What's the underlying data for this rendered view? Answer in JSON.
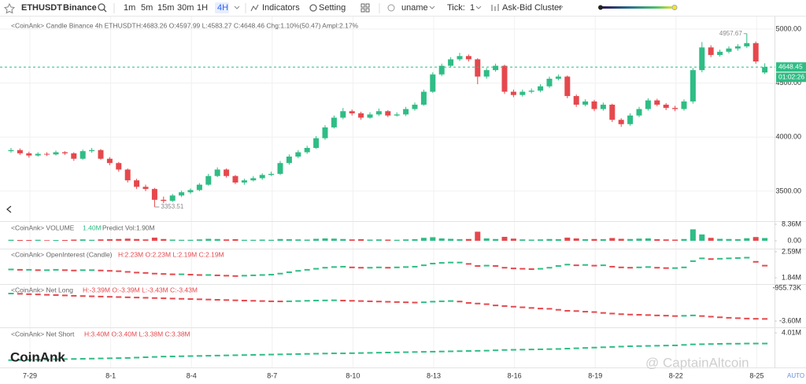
{
  "toolbar": {
    "symbol": "ETHUSDT",
    "exchange": "Binance",
    "intervals": [
      "1m",
      "5m",
      "15m",
      "30m",
      "1H",
      "4H"
    ],
    "active_interval": 5,
    "indicators": "Indicators",
    "setting": "Setting",
    "user": "uname",
    "tick_label": "Tick:",
    "tick_value": "1",
    "cluster": "Ask-Bid Cluster"
  },
  "colors": {
    "up": "#2fbd85",
    "down": "#e5484d",
    "accent": "#2962ff"
  },
  "main": {
    "header": "<CoinAnk> Candle  Binance 4h ETHUSDT",
    "stats": "H:4683.26 O:4597.99 L:4583.27 C:4648.46 Chg:1.10%(50.47) Ampl:2.17%",
    "ylim": [
      3230,
      5065
    ],
    "yticks": [
      {
        "value": 5000,
        "label": "5000.00"
      },
      {
        "value": 4500,
        "label": "4500.00"
      },
      {
        "value": 4000,
        "label": "4000.00"
      },
      {
        "value": 3500,
        "label": "3500.00"
      }
    ],
    "high_label": {
      "value": 4957.67,
      "label": "4957.67"
    },
    "low_label": {
      "value": 3353.51,
      "label": "3353.51"
    },
    "last_price": {
      "value": 4648.45,
      "label": "4648.45"
    },
    "countdown": "01:02:26",
    "candles": [
      [
        3870,
        3900,
        3855,
        3880
      ],
      [
        3880,
        3895,
        3835,
        3850
      ],
      [
        3850,
        3865,
        3810,
        3830
      ],
      [
        3830,
        3860,
        3820,
        3845
      ],
      [
        3845,
        3860,
        3825,
        3840
      ],
      [
        3840,
        3875,
        3830,
        3860
      ],
      [
        3860,
        3870,
        3835,
        3850
      ],
      [
        3850,
        3860,
        3780,
        3800
      ],
      [
        3800,
        3885,
        3790,
        3870
      ],
      [
        3870,
        3900,
        3855,
        3880
      ],
      [
        3880,
        3890,
        3790,
        3800
      ],
      [
        3800,
        3815,
        3740,
        3760
      ],
      [
        3760,
        3770,
        3680,
        3700
      ],
      [
        3700,
        3710,
        3580,
        3600
      ],
      [
        3600,
        3615,
        3520,
        3540
      ],
      [
        3540,
        3560,
        3500,
        3520
      ],
      [
        3520,
        3530,
        3353.51,
        3420
      ],
      [
        3420,
        3450,
        3390,
        3410
      ],
      [
        3410,
        3475,
        3400,
        3460
      ],
      [
        3460,
        3505,
        3445,
        3490
      ],
      [
        3490,
        3525,
        3475,
        3510
      ],
      [
        3510,
        3575,
        3500,
        3560
      ],
      [
        3560,
        3660,
        3550,
        3640
      ],
      [
        3640,
        3720,
        3630,
        3700
      ],
      [
        3700,
        3710,
        3625,
        3640
      ],
      [
        3640,
        3650,
        3565,
        3580
      ],
      [
        3580,
        3615,
        3560,
        3600
      ],
      [
        3600,
        3640,
        3590,
        3620
      ],
      [
        3620,
        3665,
        3605,
        3650
      ],
      [
        3650,
        3680,
        3640,
        3660
      ],
      [
        3660,
        3780,
        3650,
        3760
      ],
      [
        3760,
        3840,
        3745,
        3820
      ],
      [
        3820,
        3880,
        3805,
        3860
      ],
      [
        3860,
        3920,
        3845,
        3900
      ],
      [
        3900,
        4010,
        3890,
        3990
      ],
      [
        3990,
        4110,
        3975,
        4090
      ],
      [
        4090,
        4200,
        4080,
        4180
      ],
      [
        4180,
        4270,
        4165,
        4240
      ],
      [
        4240,
        4255,
        4200,
        4220
      ],
      [
        4220,
        4235,
        4160,
        4180
      ],
      [
        4180,
        4230,
        4170,
        4210
      ],
      [
        4210,
        4265,
        4195,
        4240
      ],
      [
        4240,
        4250,
        4185,
        4200
      ],
      [
        4200,
        4230,
        4190,
        4210
      ],
      [
        4210,
        4280,
        4195,
        4260
      ],
      [
        4260,
        4320,
        4245,
        4300
      ],
      [
        4300,
        4440,
        4290,
        4420
      ],
      [
        4420,
        4600,
        4410,
        4580
      ],
      [
        4580,
        4680,
        4565,
        4660
      ],
      [
        4660,
        4740,
        4645,
        4720
      ],
      [
        4720,
        4780,
        4705,
        4750
      ],
      [
        4750,
        4765,
        4700,
        4720
      ],
      [
        4720,
        4730,
        4490,
        4560
      ],
      [
        4560,
        4640,
        4540,
        4620
      ],
      [
        4620,
        4680,
        4605,
        4660
      ],
      [
        4660,
        4670,
        4400,
        4420
      ],
      [
        4420,
        4440,
        4370,
        4390
      ],
      [
        4390,
        4440,
        4375,
        4420
      ],
      [
        4420,
        4450,
        4405,
        4430
      ],
      [
        4430,
        4490,
        4415,
        4470
      ],
      [
        4470,
        4560,
        4455,
        4540
      ],
      [
        4540,
        4580,
        4525,
        4560
      ],
      [
        4560,
        4570,
        4360,
        4380
      ],
      [
        4380,
        4395,
        4280,
        4300
      ],
      [
        4300,
        4350,
        4285,
        4330
      ],
      [
        4330,
        4345,
        4240,
        4260
      ],
      [
        4260,
        4320,
        4245,
        4300
      ],
      [
        4300,
        4310,
        4140,
        4160
      ],
      [
        4160,
        4175,
        4095,
        4120
      ],
      [
        4120,
        4220,
        4105,
        4200
      ],
      [
        4200,
        4280,
        4185,
        4260
      ],
      [
        4260,
        4360,
        4245,
        4340
      ],
      [
        4340,
        4355,
        4285,
        4300
      ],
      [
        4300,
        4315,
        4250,
        4270
      ],
      [
        4270,
        4290,
        4240,
        4260
      ],
      [
        4260,
        4350,
        4245,
        4330
      ],
      [
        4330,
        4640,
        4310,
        4620
      ],
      [
        4620,
        4880,
        4600,
        4830
      ],
      [
        4830,
        4850,
        4740,
        4760
      ],
      [
        4760,
        4810,
        4745,
        4790
      ],
      [
        4790,
        4840,
        4775,
        4820
      ],
      [
        4820,
        4860,
        4800,
        4840
      ],
      [
        4840,
        4957.67,
        4825,
        4870
      ],
      [
        4870,
        4885,
        4680,
        4700
      ],
      [
        4597.99,
        4683.26,
        4583.27,
        4648.46
      ]
    ]
  },
  "volume": {
    "header": "<CoinAnk> VOLUME",
    "current": "1.40M",
    "predict": "Predict Vol:1.90M",
    "ylim": [
      0,
      8.36
    ],
    "yticks": [
      {
        "value": 8.36,
        "label": "8.36M"
      },
      {
        "value": 0,
        "label": "0.00"
      }
    ],
    "values": [
      0.5,
      0.4,
      0.4,
      0.5,
      0.3,
      0.4,
      0.4,
      0.6,
      0.7,
      0.5,
      0.7,
      0.8,
      0.9,
      1.1,
      0.9,
      0.7,
      1.6,
      0.9,
      0.6,
      0.5,
      0.5,
      0.7,
      1.0,
      0.9,
      0.7,
      0.8,
      0.5,
      0.5,
      0.6,
      0.5,
      0.9,
      0.8,
      0.7,
      0.6,
      1.0,
      1.2,
      1.1,
      0.9,
      0.7,
      0.8,
      0.6,
      0.7,
      0.6,
      0.5,
      0.7,
      0.8,
      1.5,
      1.8,
      1.2,
      1.0,
      0.8,
      0.9,
      4.6,
      1.2,
      0.9,
      2.0,
      1.1,
      0.7,
      0.6,
      0.7,
      0.9,
      0.8,
      1.6,
      1.2,
      0.8,
      0.9,
      0.8,
      1.4,
      1.0,
      0.9,
      1.1,
      1.2,
      0.8,
      0.7,
      0.6,
      0.9,
      5.8,
      3.2,
      1.5,
      1.0,
      0.9,
      0.8,
      1.3,
      1.9,
      1.4
    ]
  },
  "open_interest": {
    "header": "<CoinAnk> OpenInterest (Candle)",
    "stats": "H:2.23M O:2.23M L:2.19M C:2.19M",
    "ylim": [
      1.84,
      2.59
    ],
    "yticks": [
      {
        "value": 2.59,
        "label": "2.59M"
      },
      {
        "value": 1.84,
        "label": "1.84M"
      }
    ],
    "values": [
      2.08,
      2.07,
      2.07,
      2.06,
      2.06,
      2.07,
      2.06,
      2.05,
      2.06,
      2.06,
      2.05,
      2.04,
      2.03,
      2.01,
      1.99,
      1.98,
      1.96,
      1.95,
      1.94,
      1.94,
      1.93,
      1.92,
      1.92,
      1.91,
      1.9,
      1.89,
      1.9,
      1.91,
      1.92,
      1.93,
      1.96,
      2.0,
      2.04,
      2.07,
      2.1,
      2.13,
      2.15,
      2.16,
      2.14,
      2.13,
      2.13,
      2.14,
      2.13,
      2.14,
      2.15,
      2.16,
      2.2,
      2.25,
      2.27,
      2.28,
      2.28,
      2.24,
      2.18,
      2.19,
      2.18,
      2.13,
      2.11,
      2.1,
      2.09,
      2.1,
      2.13,
      2.18,
      2.22,
      2.2,
      2.21,
      2.19,
      2.2,
      2.16,
      2.14,
      2.13,
      2.14,
      2.15,
      2.13,
      2.12,
      2.12,
      2.14,
      2.32,
      2.4,
      2.38,
      2.39,
      2.4,
      2.41,
      2.42,
      2.3,
      2.19
    ]
  },
  "net_long": {
    "header": "<CoinAnk> Net Long",
    "stats": "H:-3.39M  O:-3.39M  L:-3.43M  C:-3.43M",
    "ylim": [
      -3.6,
      -0.95573
    ],
    "yticks": [
      {
        "value": -0.95573,
        "label": "-955.73K"
      },
      {
        "value": -3.6,
        "label": "-3.60M"
      }
    ],
    "values": [
      -1.4,
      -1.42,
      -1.45,
      -1.47,
      -1.5,
      -1.52,
      -1.55,
      -1.58,
      -1.6,
      -1.62,
      -1.64,
      -1.66,
      -1.68,
      -1.7,
      -1.72,
      -1.74,
      -1.76,
      -1.78,
      -1.8,
      -1.82,
      -1.84,
      -1.86,
      -1.88,
      -1.9,
      -1.92,
      -1.94,
      -1.96,
      -1.98,
      -2.0,
      -2.02,
      -2.03,
      -2.02,
      -2.0,
      -1.98,
      -1.96,
      -1.95,
      -1.94,
      -1.96,
      -1.98,
      -2.0,
      -2.02,
      -2.04,
      -2.06,
      -2.08,
      -2.1,
      -2.12,
      -2.1,
      -2.05,
      -2.02,
      -2.0,
      -2.04,
      -2.15,
      -2.2,
      -2.25,
      -2.35,
      -2.4,
      -2.45,
      -2.5,
      -2.55,
      -2.6,
      -2.62,
      -2.7,
      -2.78,
      -2.8,
      -2.85,
      -2.88,
      -2.95,
      -3.0,
      -3.05,
      -3.08,
      -3.1,
      -3.12,
      -3.15,
      -3.17,
      -3.2,
      -3.18,
      -3.15,
      -3.2,
      -3.25,
      -3.3,
      -3.34,
      -3.37,
      -3.4,
      -3.42,
      -3.43
    ]
  },
  "net_short": {
    "header": "<CoinAnk> Net Short",
    "stats": "H:3.40M  O:3.40M  L:3.38M  C:3.38M",
    "ylim": [
      2.2,
      4.01
    ],
    "yticks": [
      {
        "value": 4.01,
        "label": "4.01M"
      }
    ],
    "values": [
      2.4,
      2.41,
      2.42,
      2.43,
      2.44,
      2.45,
      2.46,
      2.47,
      2.48,
      2.49,
      2.5,
      2.51,
      2.52,
      2.53,
      2.55,
      2.57,
      2.59,
      2.61,
      2.62,
      2.63,
      2.64,
      2.65,
      2.66,
      2.67,
      2.68,
      2.69,
      2.7,
      2.71,
      2.72,
      2.73,
      2.74,
      2.75,
      2.76,
      2.77,
      2.78,
      2.79,
      2.8,
      2.8,
      2.81,
      2.82,
      2.83,
      2.84,
      2.85,
      2.86,
      2.87,
      2.88,
      2.89,
      2.9,
      2.91,
      2.92,
      2.93,
      2.94,
      2.95,
      2.96,
      2.98,
      3.0,
      3.01,
      3.02,
      3.03,
      3.04,
      3.05,
      3.06,
      3.08,
      3.1,
      3.12,
      3.14,
      3.16,
      3.18,
      3.2,
      3.22,
      3.23,
      3.24,
      3.25,
      3.26,
      3.27,
      3.3,
      3.33,
      3.34,
      3.35,
      3.36,
      3.37,
      3.37,
      3.38,
      3.38,
      3.38
    ]
  },
  "x_labels": [
    "7-29",
    "8-1",
    "8-4",
    "8-7",
    "8-10",
    "8-13",
    "8-16",
    "8-19",
    "8-22",
    "8-25"
  ],
  "auto": "AUTO",
  "watermark": "CoinAnk",
  "credit": "@ CaptainAltcoin"
}
